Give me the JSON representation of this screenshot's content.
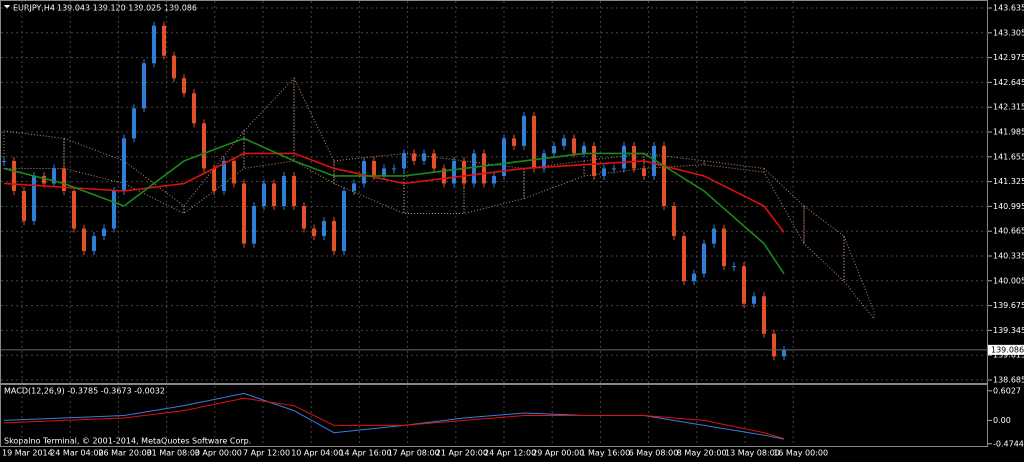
{
  "chart_data": {
    "type": "candlestick",
    "title": "EURJPY,H4",
    "ohlc": "139.043 139.120 139.025 139.086",
    "closes": [
      141.6,
      141.2,
      140.8,
      141.4,
      141.3,
      141.5,
      141.2,
      140.7,
      140.4,
      140.6,
      140.7,
      141.2,
      141.9,
      142.3,
      142.9,
      143.4,
      143.0,
      142.7,
      142.5,
      142.1,
      141.5,
      141.2,
      141.6,
      141.3,
      140.5,
      141.0,
      141.3,
      141.0,
      141.4,
      141.0,
      140.7,
      140.6,
      140.8,
      140.4,
      141.2,
      141.3,
      141.6,
      141.4,
      141.5,
      141.5,
      141.7,
      141.6,
      141.7,
      141.5,
      141.3,
      141.6,
      141.3,
      141.7,
      141.3,
      141.4,
      141.9,
      141.8,
      142.2,
      141.5,
      141.7,
      141.8,
      141.9,
      141.7,
      141.8,
      141.4,
      141.5,
      141.5,
      141.8,
      141.5,
      141.4,
      141.8,
      141.0,
      140.6,
      140.0,
      140.1,
      140.5,
      140.7,
      140.2,
      140.2,
      139.7,
      139.8,
      139.3,
      139.0,
      139.086
    ],
    "up_color": "#2f7fd6",
    "down_color": "#e2502a",
    "ylim": [
      138.645,
      143.715
    ],
    "yticks": [
      138.685,
      139.015,
      139.345,
      139.675,
      140.005,
      140.335,
      140.665,
      140.995,
      141.325,
      141.655,
      141.985,
      142.315,
      142.645,
      142.975,
      143.305,
      143.635
    ],
    "grid": true,
    "current_price": 139.086,
    "cloud": {
      "color": "#e8b08a",
      "x": [
        0,
        6,
        12,
        18,
        24,
        29,
        33,
        40,
        46,
        52,
        58,
        64,
        70,
        76,
        80,
        84,
        87
      ],
      "upper": [
        142.0,
        141.9,
        141.6,
        141.0,
        142.0,
        142.7,
        141.6,
        141.7,
        141.6,
        141.5,
        141.6,
        141.7,
        141.6,
        141.5,
        141.0,
        140.6,
        139.6
      ],
      "lower": [
        141.5,
        141.5,
        141.3,
        140.9,
        141.5,
        141.6,
        141.3,
        140.9,
        140.9,
        141.1,
        141.4,
        141.5,
        141.55,
        141.45,
        140.5,
        140.0,
        139.5
      ]
    },
    "lines": [
      {
        "color": "#e01010",
        "x": [
          0,
          6,
          12,
          18,
          24,
          29,
          33,
          40,
          46,
          52,
          58,
          64,
          70,
          76,
          78
        ],
        "values": [
          141.3,
          141.25,
          141.2,
          141.3,
          141.7,
          141.7,
          141.5,
          141.3,
          141.4,
          141.5,
          141.55,
          141.6,
          141.4,
          141.0,
          140.65
        ]
      },
      {
        "color": "#1a8a1a",
        "x": [
          0,
          6,
          12,
          18,
          24,
          29,
          33,
          40,
          46,
          52,
          58,
          64,
          70,
          76,
          78
        ],
        "values": [
          141.5,
          141.3,
          141.0,
          141.6,
          141.9,
          141.6,
          141.4,
          141.4,
          141.5,
          141.6,
          141.7,
          141.7,
          141.2,
          140.5,
          140.1
        ]
      }
    ],
    "x_labels": [
      "19 Mar 2014",
      "24 Mar 04:00",
      "26 Mar 20:00",
      "31 Mar 08:00",
      "3 Apr 00:00",
      "7 Apr 12:00",
      "10 Apr 04:00",
      "14 Apr 16:00",
      "17 Apr 08:00",
      "21 Apr 20:00",
      "24 Apr 12:00",
      "29 Apr 00:00",
      "1 May 16:00",
      "6 May 08:00",
      "8 May 20:00",
      "13 May 08:00",
      "16 May 00:00"
    ],
    "macd": {
      "title": "MACD(12,26,9) -0.3785 -0.3673 -0.0032",
      "ylim": [
        -0.52,
        0.7
      ],
      "yticks": [
        -0.4744,
        {
          "value": 0,
          "label": "0.00"
        },
        0.6027
      ],
      "lines": [
        {
          "color": "#3a7de0",
          "x": [
            0,
            6,
            12,
            18,
            24,
            29,
            33,
            40,
            46,
            52,
            58,
            64,
            70,
            76,
            78
          ],
          "values": [
            0,
            0.05,
            0.1,
            0.3,
            0.55,
            0.2,
            -0.25,
            -0.1,
            0.05,
            0.15,
            0.1,
            0.1,
            -0.1,
            -0.3,
            -0.38
          ]
        },
        {
          "color": "#e01010",
          "x": [
            0,
            6,
            12,
            18,
            24,
            29,
            33,
            40,
            46,
            52,
            58,
            64,
            70,
            76,
            78
          ],
          "values": [
            -0.05,
            0,
            0.05,
            0.2,
            0.45,
            0.3,
            -0.1,
            -0.1,
            0,
            0.1,
            0.1,
            0.1,
            0,
            -0.25,
            -0.37
          ]
        }
      ]
    },
    "footer": "Skopalno Terminal, © 2001-2014, MetaQuotes Software Corp."
  }
}
